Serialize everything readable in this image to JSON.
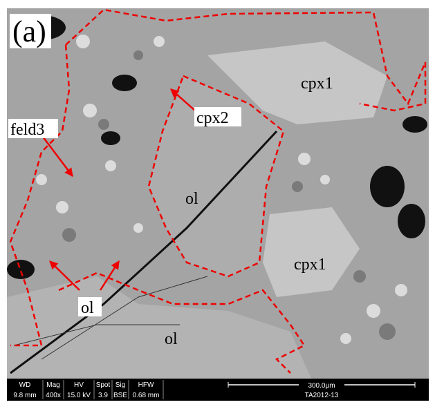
{
  "panel_label": "(a)",
  "labels": [
    "cpx1",
    "cpx2",
    "feld3",
    "ol",
    "cpx1",
    "ol",
    "ol"
  ],
  "databar": {
    "columns": [
      {
        "header": "WD",
        "value": "9.8 mm"
      },
      {
        "header": "Mag",
        "value": "400x"
      },
      {
        "header": "HV",
        "value": "15.0 kV"
      },
      {
        "header": "Spot",
        "value": "3.9"
      },
      {
        "header": "Sig",
        "value": "BSE"
      },
      {
        "header": "HFW",
        "value": "0.68 mm"
      }
    ],
    "scale": "300.0µm",
    "sample": "TA2012-13"
  }
}
